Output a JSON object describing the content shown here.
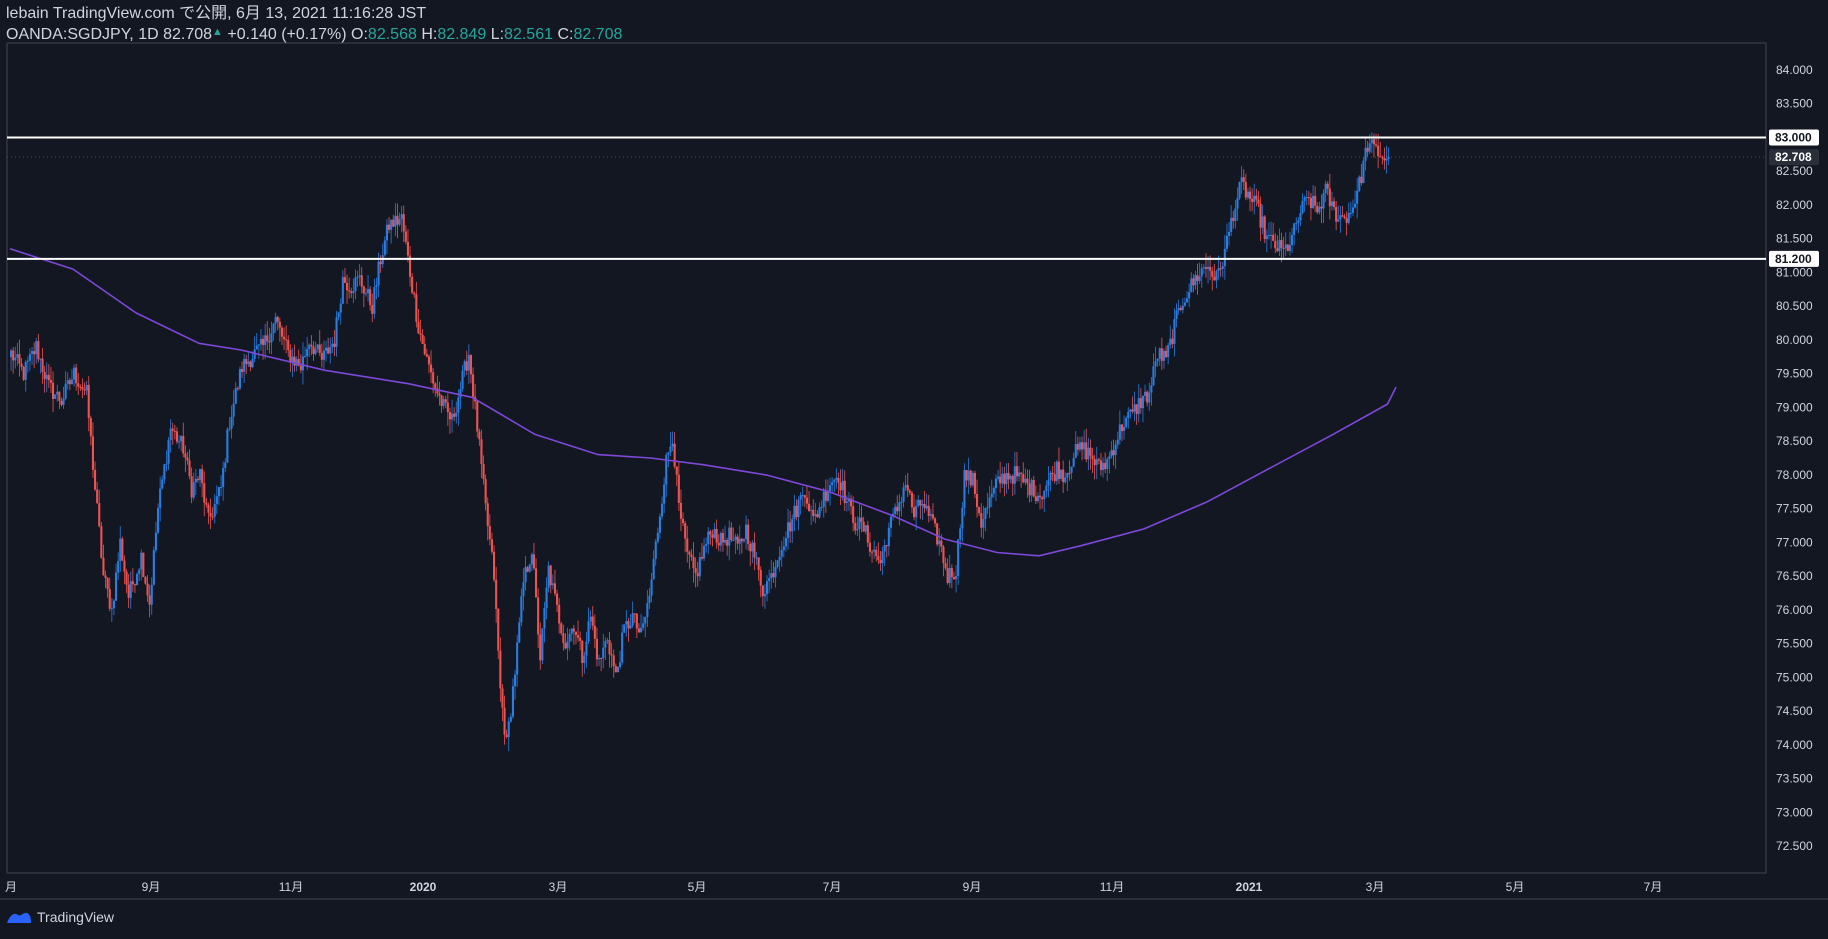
{
  "header": {
    "line1": "lebain TradingView.com で公開, 6月 13, 2021 11:16:28 JST",
    "symbol": "OANDA:SGDJPY, 1D 82.708",
    "up_arrow": "▲",
    "change": "+0.140 (+0.17%)",
    "o_label": "O:",
    "o_value": "82.568",
    "h_label": "H:",
    "h_value": "82.849",
    "l_label": "L:",
    "l_value": "82.561",
    "c_label": "C:",
    "c_value": "82.708"
  },
  "footer": {
    "brand": "TradingView"
  },
  "colors": {
    "background": "#131722",
    "up": "#2a7de1",
    "down": "#ef5350",
    "ma": "#7e48d8",
    "hline": "#ffffff",
    "grid_text": "#d1d4dc",
    "border": "#434651"
  },
  "chart_data": {
    "type": "candlestick",
    "symbol": "OANDA:SGDJPY",
    "interval": "1D",
    "ylim": [
      72.1,
      84.4
    ],
    "y_ticks": [
      "84.000",
      "83.500",
      "83.000",
      "82.500",
      "82.000",
      "81.500",
      "81.000",
      "80.500",
      "80.000",
      "79.500",
      "79.000",
      "78.500",
      "78.000",
      "77.500",
      "77.000",
      "76.500",
      "76.000",
      "75.500",
      "75.000",
      "74.500",
      "74.000",
      "73.500",
      "73.000",
      "72.500"
    ],
    "x_ticks": [
      "月",
      "9月",
      "11月",
      "2020",
      "3月",
      "5月",
      "7月",
      "9月",
      "11月",
      "2021",
      "3月",
      "5月",
      "7月"
    ],
    "horizontal_lines": [
      83.0,
      81.2
    ],
    "price_labels": [
      "83.000",
      "82.708",
      "81.200"
    ],
    "last_price": 82.708,
    "path_anchors": [
      [
        0,
        79.8
      ],
      [
        6,
        79.5
      ],
      [
        12,
        79.9
      ],
      [
        18,
        79.3
      ],
      [
        24,
        79.1
      ],
      [
        30,
        79.5
      ],
      [
        36,
        79.2
      ],
      [
        40,
        77.8
      ],
      [
        44,
        76.5
      ],
      [
        48,
        76.0
      ],
      [
        52,
        77.0
      ],
      [
        56,
        76.2
      ],
      [
        62,
        76.8
      ],
      [
        66,
        76.1
      ],
      [
        70,
        77.5
      ],
      [
        76,
        78.7
      ],
      [
        82,
        78.4
      ],
      [
        86,
        77.8
      ],
      [
        90,
        78.0
      ],
      [
        94,
        77.3
      ],
      [
        100,
        77.8
      ],
      [
        104,
        78.8
      ],
      [
        110,
        79.6
      ],
      [
        116,
        79.8
      ],
      [
        120,
        79.9
      ],
      [
        126,
        80.3
      ],
      [
        132,
        79.8
      ],
      [
        138,
        79.6
      ],
      [
        142,
        80.0
      ],
      [
        148,
        79.7
      ],
      [
        154,
        80.0
      ],
      [
        158,
        80.9
      ],
      [
        162,
        80.8
      ],
      [
        166,
        80.9
      ],
      [
        172,
        80.5
      ],
      [
        176,
        81.2
      ],
      [
        180,
        81.7
      ],
      [
        186,
        81.8
      ],
      [
        190,
        81.0
      ],
      [
        194,
        80.2
      ],
      [
        198,
        79.7
      ],
      [
        202,
        79.3
      ],
      [
        206,
        79.0
      ],
      [
        210,
        78.8
      ],
      [
        214,
        79.3
      ],
      [
        218,
        79.8
      ],
      [
        222,
        78.7
      ],
      [
        226,
        77.5
      ],
      [
        230,
        76.5
      ],
      [
        233,
        74.8
      ],
      [
        236,
        74.0
      ],
      [
        240,
        75.1
      ],
      [
        244,
        76.4
      ],
      [
        248,
        76.9
      ],
      [
        252,
        75.3
      ],
      [
        256,
        76.6
      ],
      [
        260,
        76.0
      ],
      [
        264,
        75.5
      ],
      [
        268,
        75.8
      ],
      [
        272,
        75.3
      ],
      [
        276,
        75.9
      ],
      [
        280,
        75.2
      ],
      [
        284,
        75.6
      ],
      [
        288,
        75.0
      ],
      [
        292,
        75.7
      ],
      [
        296,
        75.9
      ],
      [
        300,
        75.6
      ],
      [
        304,
        76.2
      ],
      [
        308,
        77.2
      ],
      [
        312,
        78.2
      ],
      [
        315,
        78.6
      ],
      [
        318,
        77.5
      ],
      [
        322,
        76.8
      ],
      [
        326,
        76.5
      ],
      [
        330,
        76.9
      ],
      [
        334,
        77.2
      ],
      [
        338,
        77.0
      ],
      [
        342,
        77.1
      ],
      [
        346,
        76.9
      ],
      [
        350,
        77.2
      ],
      [
        354,
        76.8
      ],
      [
        358,
        76.3
      ],
      [
        362,
        76.5
      ],
      [
        366,
        76.9
      ],
      [
        370,
        77.2
      ],
      [
        374,
        77.5
      ],
      [
        378,
        77.8
      ],
      [
        382,
        77.3
      ],
      [
        386,
        77.6
      ],
      [
        390,
        77.9
      ],
      [
        394,
        78.0
      ],
      [
        398,
        77.6
      ],
      [
        402,
        77.3
      ],
      [
        406,
        77.2
      ],
      [
        410,
        76.9
      ],
      [
        414,
        76.7
      ],
      [
        418,
        77.2
      ],
      [
        422,
        77.5
      ],
      [
        426,
        77.9
      ],
      [
        430,
        77.4
      ],
      [
        434,
        77.6
      ],
      [
        438,
        77.3
      ],
      [
        442,
        77.0
      ],
      [
        446,
        76.5
      ],
      [
        450,
        76.6
      ],
      [
        454,
        78.0
      ],
      [
        458,
        77.9
      ],
      [
        462,
        77.3
      ],
      [
        466,
        77.6
      ],
      [
        470,
        77.9
      ],
      [
        474,
        78.0
      ],
      [
        478,
        78.0
      ],
      [
        482,
        77.9
      ],
      [
        486,
        77.8
      ],
      [
        490,
        77.7
      ],
      [
        494,
        77.9
      ],
      [
        498,
        78.1
      ],
      [
        502,
        78.0
      ],
      [
        506,
        78.3
      ],
      [
        510,
        78.4
      ],
      [
        514,
        78.3
      ],
      [
        518,
        78.1
      ],
      [
        522,
        78.2
      ],
      [
        526,
        78.5
      ],
      [
        530,
        78.8
      ],
      [
        534,
        78.9
      ],
      [
        538,
        79.1
      ],
      [
        542,
        79.2
      ],
      [
        546,
        79.8
      ],
      [
        550,
        79.7
      ],
      [
        554,
        80.2
      ],
      [
        558,
        80.6
      ],
      [
        562,
        80.8
      ],
      [
        566,
        81.0
      ],
      [
        570,
        81.1
      ],
      [
        574,
        80.9
      ],
      [
        578,
        81.3
      ],
      [
        582,
        81.9
      ],
      [
        586,
        82.3
      ],
      [
        590,
        82.1
      ],
      [
        594,
        81.9
      ],
      [
        598,
        81.5
      ],
      [
        602,
        81.4
      ],
      [
        606,
        81.3
      ],
      [
        610,
        81.5
      ],
      [
        614,
        81.9
      ],
      [
        618,
        82.1
      ],
      [
        622,
        81.9
      ],
      [
        626,
        82.2
      ],
      [
        630,
        81.9
      ],
      [
        634,
        81.8
      ],
      [
        638,
        81.9
      ],
      [
        642,
        82.3
      ],
      [
        646,
        82.9
      ],
      [
        650,
        82.8
      ],
      [
        654,
        82.7
      ],
      [
        656,
        82.708
      ]
    ],
    "ma_anchors": [
      [
        0,
        81.35
      ],
      [
        30,
        81.05
      ],
      [
        60,
        80.4
      ],
      [
        90,
        79.95
      ],
      [
        110,
        79.85
      ],
      [
        150,
        79.55
      ],
      [
        190,
        79.35
      ],
      [
        220,
        79.15
      ],
      [
        250,
        78.6
      ],
      [
        280,
        78.3
      ],
      [
        305,
        78.25
      ],
      [
        330,
        78.15
      ],
      [
        360,
        78.0
      ],
      [
        390,
        77.75
      ],
      [
        420,
        77.4
      ],
      [
        445,
        77.05
      ],
      [
        470,
        76.85
      ],
      [
        490,
        76.8
      ],
      [
        510,
        76.95
      ],
      [
        540,
        77.2
      ],
      [
        570,
        77.6
      ],
      [
        600,
        78.1
      ],
      [
        630,
        78.6
      ],
      [
        656,
        79.05
      ],
      [
        660,
        79.3
      ]
    ]
  }
}
